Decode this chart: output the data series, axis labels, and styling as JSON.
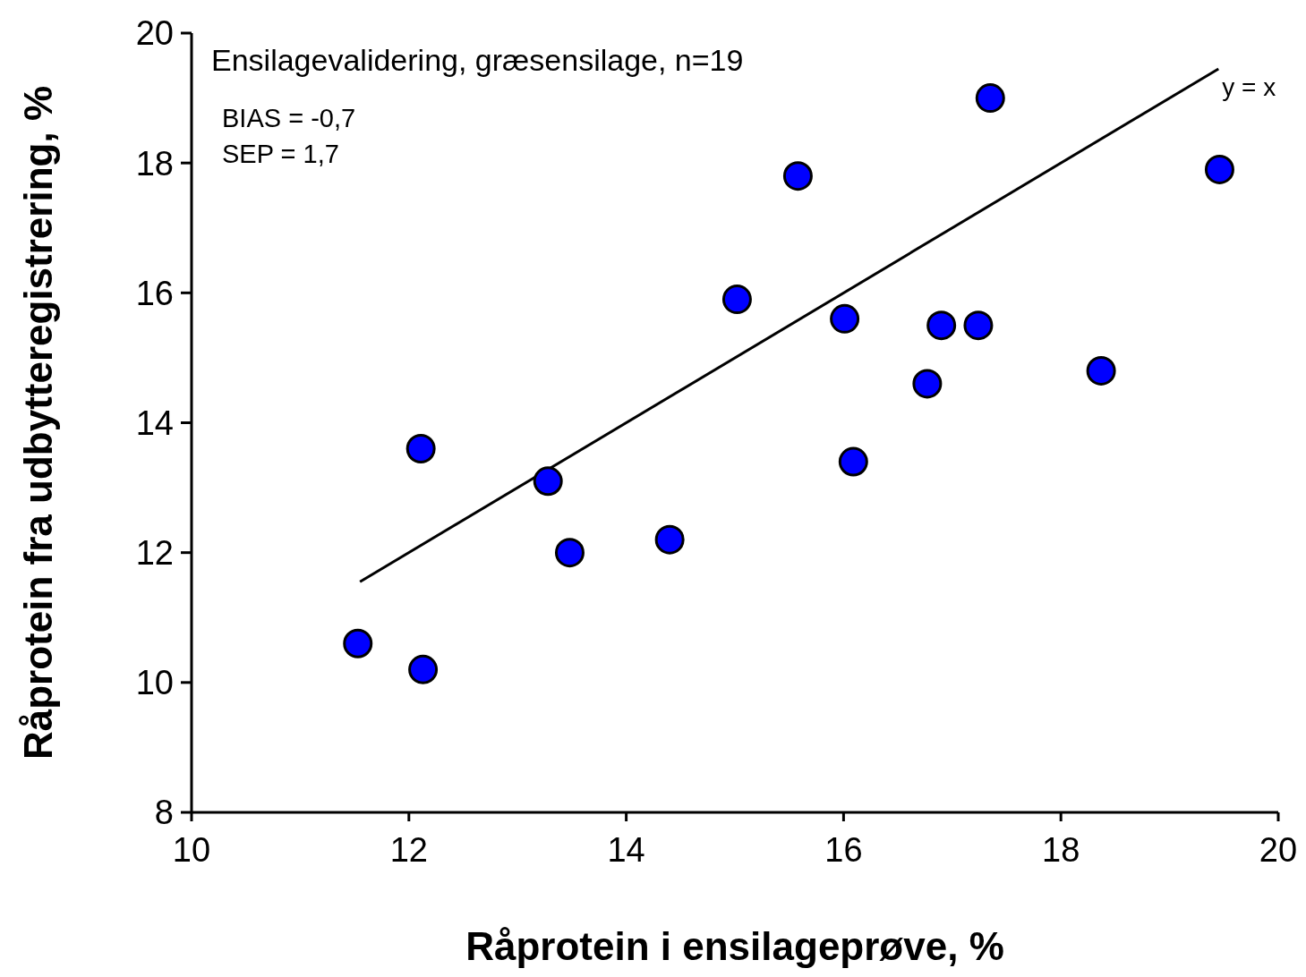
{
  "chart_data": {
    "type": "scatter",
    "xlabel": "Råprotein i ensilageprøve, %",
    "ylabel": "Råprotein fra udbytteregistrering, %",
    "annotations": [
      "Ensilagevalidering, græsensilage, n=19",
      "BIAS = -0,7",
      "SEP = 1,7"
    ],
    "xlim": [
      10,
      20
    ],
    "xticks": [
      10,
      12,
      14,
      16,
      18,
      20
    ],
    "ylim": [
      8,
      20
    ],
    "yticks": [
      8,
      10,
      12,
      14,
      16,
      18,
      20
    ],
    "grid": false,
    "marker": "circle",
    "series": [
      {
        "color": "#0000ff",
        "x": [
          11.53,
          12.13,
          12.11,
          13.28,
          13.48,
          14.4,
          15.02,
          15.58,
          16.01,
          16.09,
          16.77,
          16.9,
          17.24,
          17.35,
          18.37,
          19.46
        ],
        "values": [
          10.6,
          10.2,
          13.6,
          13.1,
          12.0,
          12.2,
          15.9,
          17.8,
          15.6,
          13.4,
          14.6,
          15.5,
          15.5,
          19.0,
          14.8,
          17.9
        ]
      },
      {
        "type": "line",
        "name": "y = x",
        "color": "#000000",
        "line_style": "solid",
        "marker": "none",
        "x": [
          11.55,
          19.45
        ],
        "values": [
          11.55,
          19.45
        ]
      }
    ]
  }
}
